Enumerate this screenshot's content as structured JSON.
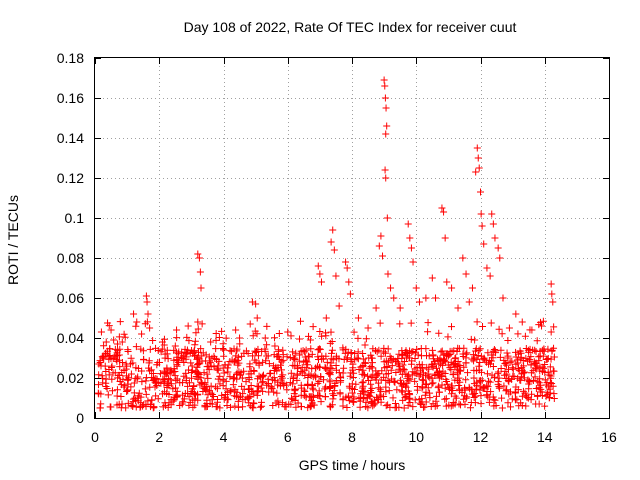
{
  "chart_data": {
    "type": "scatter",
    "title": "Day 108 of 2022, Rate Of TEC Index for receiver cuut",
    "xlabel": "GPS time / hours",
    "ylabel": "ROTI / TECUs",
    "xlim": [
      0,
      16
    ],
    "ylim": [
      0,
      0.18
    ],
    "x_ticks": [
      "0",
      "2",
      "4",
      "6",
      "8",
      "10",
      "12",
      "14",
      "16"
    ],
    "y_ticks": [
      "0",
      "0.02",
      "0.04",
      "0.06",
      "0.08",
      "0.1",
      "0.12",
      "0.14",
      "0.16",
      "0.18"
    ],
    "grid": true,
    "marker": "+",
    "color": "#ff0000",
    "data_extent": [
      0.1,
      14.3
    ],
    "baseline_band": [
      0.005,
      0.035
    ],
    "series": [
      {
        "points": [
          [
            0.2,
            0.043
          ],
          [
            0.35,
            0.038
          ],
          [
            0.5,
            0.044
          ],
          [
            0.7,
            0.037
          ],
          [
            0.85,
            0.038
          ],
          [
            1.2,
            0.052
          ],
          [
            1.3,
            0.048
          ],
          [
            1.45,
            0.042
          ],
          [
            1.6,
            0.061
          ],
          [
            1.62,
            0.058
          ],
          [
            1.65,
            0.052
          ],
          [
            1.7,
            0.045
          ],
          [
            2.1,
            0.038
          ],
          [
            2.5,
            0.036
          ],
          [
            2.9,
            0.046
          ],
          [
            3.2,
            0.082
          ],
          [
            3.25,
            0.08
          ],
          [
            3.28,
            0.073
          ],
          [
            3.3,
            0.065
          ],
          [
            3.2,
            0.048
          ],
          [
            3.6,
            0.038
          ],
          [
            4.0,
            0.034
          ],
          [
            4.5,
            0.04
          ],
          [
            4.9,
            0.058
          ],
          [
            5.0,
            0.057
          ],
          [
            5.05,
            0.05
          ],
          [
            5.3,
            0.04
          ],
          [
            5.6,
            0.036
          ],
          [
            6.0,
            0.043
          ],
          [
            6.3,
            0.025
          ],
          [
            6.6,
            0.028
          ],
          [
            6.95,
            0.076
          ],
          [
            7.0,
            0.072
          ],
          [
            7.05,
            0.068
          ],
          [
            7.2,
            0.05
          ],
          [
            7.35,
            0.088
          ],
          [
            7.4,
            0.094
          ],
          [
            7.45,
            0.084
          ],
          [
            7.5,
            0.071
          ],
          [
            7.6,
            0.056
          ],
          [
            7.8,
            0.078
          ],
          [
            7.85,
            0.075
          ],
          [
            7.9,
            0.068
          ],
          [
            7.95,
            0.062
          ],
          [
            8.2,
            0.05
          ],
          [
            8.5,
            0.045
          ],
          [
            8.75,
            0.055
          ],
          [
            8.85,
            0.086
          ],
          [
            8.9,
            0.091
          ],
          [
            8.95,
            0.081
          ],
          [
            9.0,
            0.169
          ],
          [
            9.02,
            0.166
          ],
          [
            9.04,
            0.16
          ],
          [
            9.06,
            0.155
          ],
          [
            9.08,
            0.146
          ],
          [
            9.05,
            0.142
          ],
          [
            9.03,
            0.124
          ],
          [
            9.05,
            0.12
          ],
          [
            9.1,
            0.1
          ],
          [
            9.12,
            0.072
          ],
          [
            9.2,
            0.065
          ],
          [
            9.3,
            0.06
          ],
          [
            9.5,
            0.055
          ],
          [
            9.75,
            0.097
          ],
          [
            9.8,
            0.09
          ],
          [
            9.85,
            0.085
          ],
          [
            9.9,
            0.078
          ],
          [
            10.0,
            0.065
          ],
          [
            10.1,
            0.058
          ],
          [
            10.3,
            0.06
          ],
          [
            10.5,
            0.07
          ],
          [
            10.6,
            0.06
          ],
          [
            10.8,
            0.105
          ],
          [
            10.85,
            0.103
          ],
          [
            10.9,
            0.09
          ],
          [
            10.95,
            0.068
          ],
          [
            11.1,
            0.065
          ],
          [
            11.3,
            0.055
          ],
          [
            11.45,
            0.08
          ],
          [
            11.55,
            0.072
          ],
          [
            11.65,
            0.058
          ],
          [
            11.75,
            0.065
          ],
          [
            11.85,
            0.123
          ],
          [
            11.9,
            0.135
          ],
          [
            11.93,
            0.13
          ],
          [
            11.96,
            0.125
          ],
          [
            12.0,
            0.113
          ],
          [
            12.02,
            0.102
          ],
          [
            12.05,
            0.096
          ],
          [
            12.1,
            0.087
          ],
          [
            12.2,
            0.075
          ],
          [
            12.3,
            0.071
          ],
          [
            12.35,
            0.102
          ],
          [
            12.4,
            0.097
          ],
          [
            12.45,
            0.09
          ],
          [
            12.55,
            0.085
          ],
          [
            12.6,
            0.08
          ],
          [
            12.7,
            0.06
          ],
          [
            12.9,
            0.045
          ],
          [
            13.1,
            0.052
          ],
          [
            13.3,
            0.048
          ],
          [
            13.6,
            0.044
          ],
          [
            13.9,
            0.046
          ],
          [
            14.2,
            0.067
          ],
          [
            14.22,
            0.062
          ],
          [
            14.25,
            0.058
          ],
          [
            14.2,
            0.043
          ]
        ]
      }
    ]
  }
}
